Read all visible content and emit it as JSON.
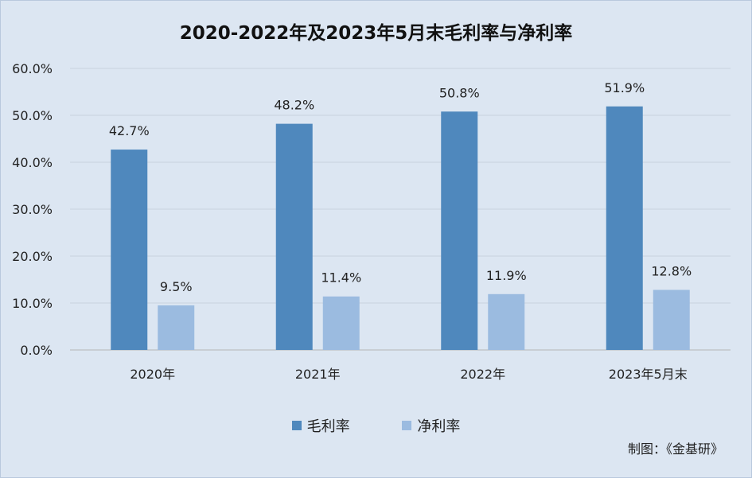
{
  "chart_data": {
    "type": "bar",
    "title": "2020-2022年及2023年5月末毛利率与净利率",
    "categories": [
      "2020年",
      "2021年",
      "2022年",
      "2023年5月末"
    ],
    "series": [
      {
        "name": "毛利率",
        "values": [
          42.7,
          48.2,
          50.8,
          51.9
        ],
        "labels": [
          "42.7%",
          "48.2%",
          "50.8%",
          "51.9%"
        ],
        "color": "#4f88bd"
      },
      {
        "name": "净利率",
        "values": [
          9.5,
          11.4,
          11.9,
          12.8
        ],
        "labels": [
          "9.5%",
          "11.4%",
          "11.9%",
          "12.8%"
        ],
        "color": "#9bbbe0"
      }
    ],
    "ylim": [
      0,
      60
    ],
    "yticks": [
      0,
      10,
      20,
      30,
      40,
      50,
      60
    ],
    "ytick_labels": [
      "0.0%",
      "10.0%",
      "20.0%",
      "30.0%",
      "40.0%",
      "50.0%",
      "60.0%"
    ],
    "grid": true,
    "legend": "bottom"
  },
  "footer": {
    "credit": "制图：《金基研》"
  }
}
